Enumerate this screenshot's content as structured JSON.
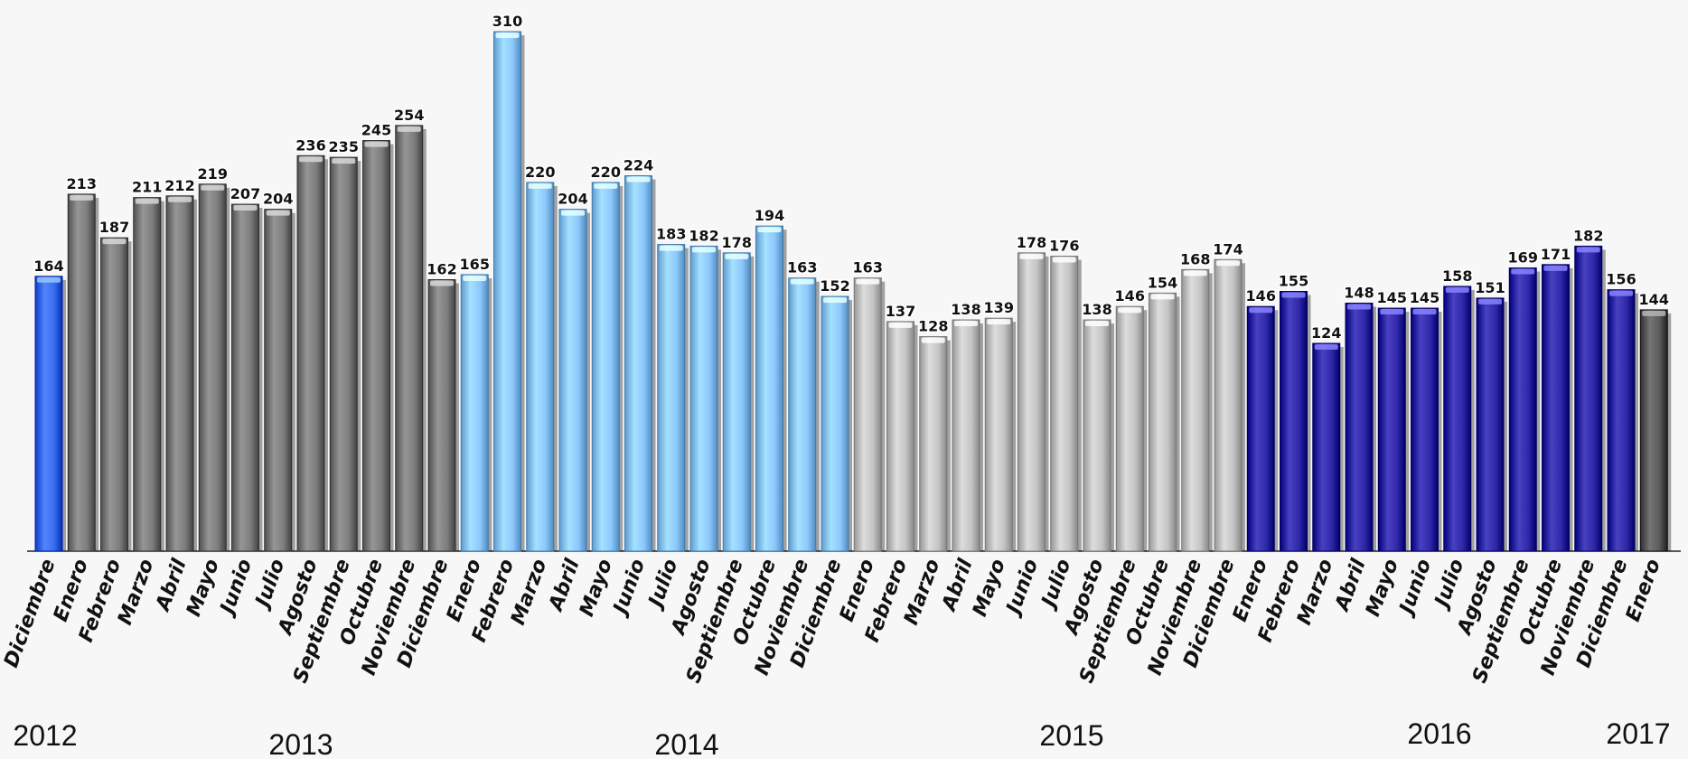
{
  "chart_data": {
    "type": "bar",
    "title": "",
    "xlabel": "",
    "ylabel": "",
    "ylim": [
      0,
      320
    ],
    "grid": false,
    "legend": "none",
    "categories": [
      "Diciembre",
      "Enero",
      "Febrero",
      "Marzo",
      "Abril",
      "Mayo",
      "Junio",
      "Julio",
      "Agosto",
      "Septiembre",
      "Octubre",
      "Noviembre",
      "Diciembre",
      "Enero",
      "Febrero",
      "Marzo",
      "Abril",
      "Mayo",
      "Junio",
      "Julio",
      "Agosto",
      "Septiembre",
      "Octubre",
      "Noviembre",
      "Diciembre",
      "Enero",
      "Febrero",
      "Marzo",
      "Abril",
      "Mayo",
      "Junio",
      "Julio",
      "Agosto",
      "Septiembre",
      "Octubre",
      "Noviembre",
      "Diciembre",
      "Enero",
      "Febrero",
      "Marzo",
      "Abril",
      "Mayo",
      "Junio",
      "Julio",
      "Agosto",
      "Septiembre",
      "Octubre",
      "Noviembre",
      "Diciembre",
      "Enero"
    ],
    "values": [
      164,
      213,
      187,
      211,
      212,
      219,
      207,
      204,
      236,
      235,
      245,
      254,
      162,
      165,
      310,
      220,
      204,
      220,
      224,
      183,
      182,
      178,
      194,
      163,
      152,
      163,
      137,
      128,
      138,
      139,
      178,
      176,
      138,
      146,
      154,
      168,
      174,
      146,
      155,
      124,
      148,
      145,
      145,
      158,
      151,
      169,
      171,
      182,
      156,
      144
    ],
    "years": [
      {
        "label": "2012",
        "start": 0,
        "end": 0,
        "color": "#3a6cf0"
      },
      {
        "label": "2013",
        "start": 1,
        "end": 12,
        "color": "#7d7d7d"
      },
      {
        "label": "2014",
        "start": 13,
        "end": 24,
        "color": "#8cc8fb"
      },
      {
        "label": "2015",
        "start": 25,
        "end": 36,
        "color": "#c4c4c4"
      },
      {
        "label": "2016",
        "start": 37,
        "end": 48,
        "color": "#2f28a8"
      },
      {
        "label": "2017",
        "start": 49,
        "end": 49,
        "color": "#5c5c5c"
      }
    ]
  }
}
